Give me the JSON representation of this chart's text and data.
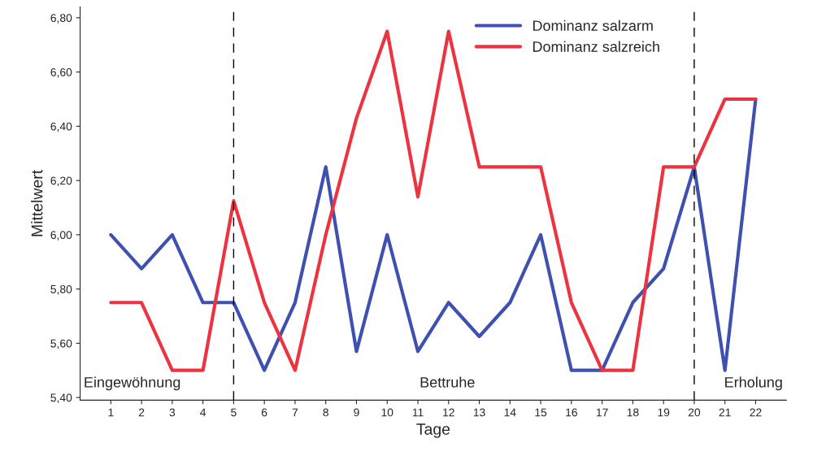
{
  "chart_data": {
    "type": "line",
    "xlabel": "Tage",
    "ylabel": "Mittelwert",
    "x": [
      1,
      2,
      3,
      4,
      5,
      6,
      7,
      8,
      9,
      10,
      11,
      12,
      13,
      14,
      15,
      16,
      17,
      18,
      19,
      20,
      21,
      22
    ],
    "xlim": [
      0,
      23
    ],
    "xticks": [
      1,
      2,
      3,
      4,
      5,
      6,
      7,
      8,
      9,
      10,
      11,
      12,
      13,
      14,
      15,
      16,
      17,
      18,
      19,
      20,
      21,
      22
    ],
    "ylim": [
      5.39,
      6.84
    ],
    "yticks": [
      {
        "value": 5.4,
        "label": "5,40"
      },
      {
        "value": 5.6,
        "label": "5,60"
      },
      {
        "value": 5.8,
        "label": "5,80"
      },
      {
        "value": 6.0,
        "label": "6,00"
      },
      {
        "value": 6.2,
        "label": "6,20"
      },
      {
        "value": 6.4,
        "label": "6,40"
      },
      {
        "value": 6.6,
        "label": "6,60"
      },
      {
        "value": 6.8,
        "label": "6,80"
      }
    ],
    "series": [
      {
        "name": "Dominanz salzarm",
        "color": "#3f51b0",
        "values": [
          6.0,
          5.875,
          6.0,
          5.75,
          5.75,
          5.5,
          5.75,
          6.25,
          5.57,
          6.0,
          5.57,
          5.75,
          5.625,
          5.75,
          6.0,
          5.5,
          5.5,
          5.75,
          5.875,
          6.25,
          5.5,
          6.5
        ]
      },
      {
        "name": "Dominanz salzreich",
        "color": "#ee3340",
        "values": [
          5.75,
          5.75,
          5.5,
          5.5,
          6.125,
          5.75,
          5.5,
          6.0,
          6.43,
          6.75,
          6.14,
          6.75,
          6.25,
          6.25,
          6.25,
          5.75,
          5.5,
          5.5,
          6.25,
          6.25,
          6.5,
          6.5
        ]
      }
    ],
    "ref_lines": [
      {
        "axis": "x",
        "value": 5,
        "color": "#000000",
        "line_style": "dashed"
      },
      {
        "axis": "x",
        "value": 20,
        "color": "#000000",
        "line_style": "dashed"
      }
    ],
    "annotations": [
      "Eingewöhnung",
      "Bettruhe",
      "Erholung"
    ],
    "grid": false,
    "legend": "top right",
    "marker": "none",
    "line_style": "solid"
  }
}
